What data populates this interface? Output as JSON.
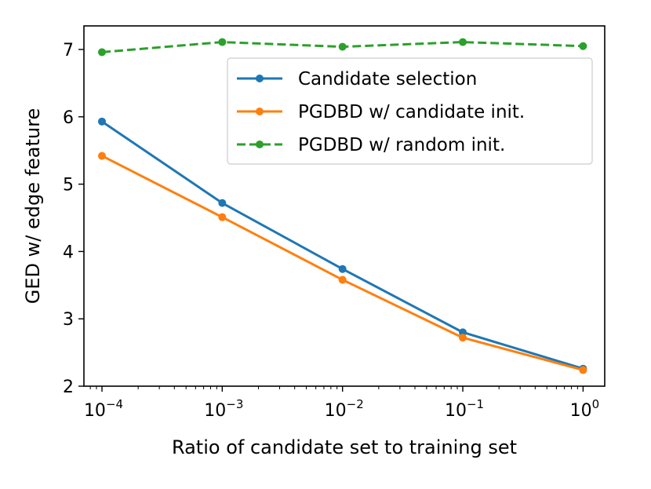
{
  "chart_data": {
    "type": "line",
    "title": "",
    "xlabel": "Ratio of candidate set to training set",
    "ylabel": "GED w/ edge feature",
    "xscale": "log",
    "x": [
      0.0001,
      0.001,
      0.01,
      0.1,
      1
    ],
    "xtick_exponents": [
      "−4",
      "−3",
      "−2",
      "−1",
      "0"
    ],
    "xtick_base": "10",
    "ylim": [
      2,
      7.35
    ],
    "yticks": [
      2,
      3,
      4,
      5,
      6,
      7
    ],
    "series": [
      {
        "name": "Candidate selection",
        "values": [
          5.93,
          4.72,
          3.74,
          2.8,
          2.26
        ],
        "color": "#1f77b4",
        "linestyle": "solid"
      },
      {
        "name": "PGDBD w/ candidate init.",
        "values": [
          5.42,
          4.51,
          3.58,
          2.72,
          2.24
        ],
        "color": "#ff7f0e",
        "linestyle": "solid"
      },
      {
        "name": "PGDBD w/ random init.",
        "values": [
          6.96,
          7.11,
          7.04,
          7.11,
          7.05
        ],
        "color": "#2ca02c",
        "linestyle": "dashed"
      }
    ],
    "legend_position": "upper-right"
  }
}
